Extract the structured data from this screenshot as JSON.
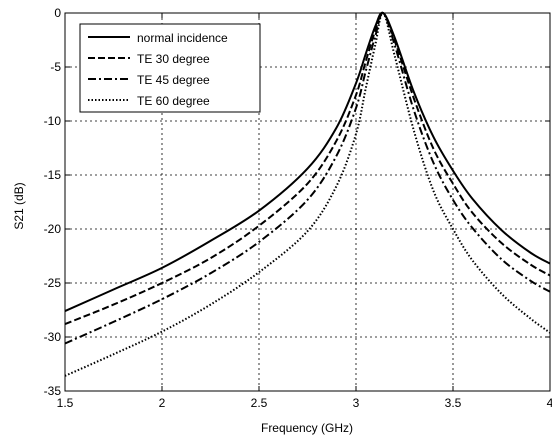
{
  "chart_data": {
    "type": "line",
    "xlabel": "Frequency (GHz)",
    "ylabel": "S21 (dB)",
    "xlim": [
      1.5,
      4
    ],
    "ylim": [
      -35,
      0
    ],
    "xticks": [
      1.5,
      2,
      2.5,
      3,
      3.5,
      4
    ],
    "yticks": [
      -35,
      -30,
      -25,
      -20,
      -15,
      -10,
      -5,
      0
    ],
    "xtick_labels": [
      "1.5",
      "2",
      "2.5",
      "3",
      "3.5",
      "4"
    ],
    "ytick_labels": [
      "-35",
      "-30",
      "-25",
      "-20",
      "-15",
      "-10",
      "-5",
      "0"
    ],
    "grid": true,
    "legend_position": "top-left",
    "series": [
      {
        "name": "normal incidence",
        "style": "solid",
        "color": "#000000",
        "x": [
          1.5,
          1.75,
          2.0,
          2.25,
          2.5,
          2.75,
          2.9,
          3.0,
          3.05,
          3.1,
          3.14,
          3.2,
          3.3,
          3.4,
          3.5,
          3.6,
          3.75,
          3.9,
          4.0
        ],
        "y": [
          -27.6,
          -25.6,
          -23.6,
          -21.1,
          -18.3,
          -14.4,
          -10.6,
          -6.5,
          -3.8,
          -1.2,
          0,
          -2.3,
          -7.4,
          -11.5,
          -14.6,
          -17.2,
          -20.1,
          -22.2,
          -23.2
        ]
      },
      {
        "name": "TE 30 degree",
        "style": "dashed",
        "color": "#000000",
        "x": [
          1.5,
          1.75,
          2.0,
          2.25,
          2.5,
          2.75,
          2.9,
          3.0,
          3.05,
          3.1,
          3.14,
          3.2,
          3.3,
          3.4,
          3.5,
          3.6,
          3.75,
          3.9,
          4.0
        ],
        "y": [
          -28.8,
          -27.0,
          -25.0,
          -22.7,
          -19.7,
          -15.8,
          -11.8,
          -7.6,
          -4.5,
          -1.6,
          0,
          -2.6,
          -8.0,
          -12.6,
          -15.8,
          -18.5,
          -21.3,
          -23.3,
          -24.3
        ]
      },
      {
        "name": "TE 45 degree",
        "style": "dashdot",
        "color": "#000000",
        "x": [
          1.5,
          1.75,
          2.0,
          2.25,
          2.5,
          2.75,
          2.9,
          3.0,
          3.05,
          3.1,
          3.14,
          3.2,
          3.3,
          3.4,
          3.5,
          3.6,
          3.75,
          3.9,
          4.0
        ],
        "y": [
          -30.6,
          -28.6,
          -26.5,
          -24.1,
          -21.2,
          -17.3,
          -13.2,
          -8.8,
          -5.4,
          -2.1,
          0,
          -3.0,
          -9.1,
          -13.9,
          -17.3,
          -19.9,
          -22.8,
          -24.8,
          -25.8
        ]
      },
      {
        "name": "TE 60 degree",
        "style": "dotted",
        "color": "#000000",
        "x": [
          1.5,
          1.75,
          2.0,
          2.25,
          2.5,
          2.75,
          2.9,
          3.0,
          3.05,
          3.1,
          3.14,
          3.2,
          3.3,
          3.4,
          3.5,
          3.6,
          3.75,
          3.9,
          4.0
        ],
        "y": [
          -33.6,
          -31.6,
          -29.5,
          -27.0,
          -24.0,
          -20.2,
          -16.0,
          -11.2,
          -7.0,
          -2.9,
          0,
          -4.0,
          -11.0,
          -16.5,
          -20.0,
          -22.9,
          -26.0,
          -28.3,
          -29.6
        ]
      }
    ]
  }
}
